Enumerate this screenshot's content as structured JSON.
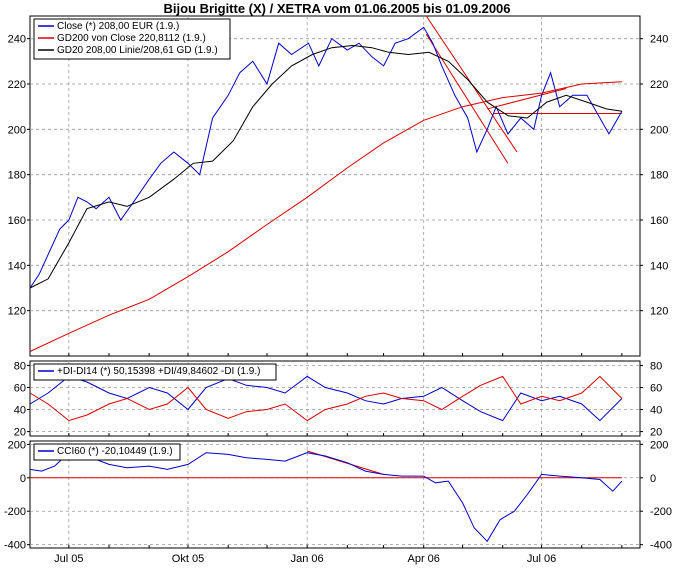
{
  "title": "Bijou Brigitte (X) / XETRA vom 01.06.2005 bis 01.09.2006",
  "x_ticks": [
    "Jul 05",
    "Okt 05",
    "Jan 06",
    "Apr 06",
    "Jul 06"
  ],
  "colors": {
    "close": "#0000cc",
    "gd200": "#dd0000",
    "gd20": "#000000",
    "di_plus": "#0000cc",
    "di_minus": "#dd0000",
    "cci": "#0000cc",
    "trend": "#dd0000",
    "grid": "#999999"
  },
  "chart_data": [
    {
      "type": "line",
      "title": "",
      "ylim": [
        100,
        250
      ],
      "y_ticks": [
        120,
        140,
        160,
        180,
        200,
        220,
        240
      ],
      "legend_placement": "top-left",
      "legend": [
        "Close (*) 208,00 EUR (1.9.)",
        "GD200 von Close 220,8112 (1.9.)",
        "GD20 208,00 Linie/208,61 GD (1.9.)"
      ],
      "series": [
        {
          "name": "Close (*) 208,00 EUR (1.9.)",
          "x": [
            "2005-06-01",
            "2005-06-08",
            "2005-06-16",
            "2005-06-24",
            "2005-07-01",
            "2005-07-08",
            "2005-07-15",
            "2005-07-22",
            "2005-08-01",
            "2005-08-10",
            "2005-08-20",
            "2005-09-01",
            "2005-09-10",
            "2005-09-20",
            "2005-10-01",
            "2005-10-10",
            "2005-10-20",
            "2005-11-01",
            "2005-11-10",
            "2005-11-20",
            "2005-12-01",
            "2005-12-10",
            "2005-12-20",
            "2006-01-02",
            "2006-01-10",
            "2006-01-20",
            "2006-02-01",
            "2006-02-10",
            "2006-02-20",
            "2006-03-01",
            "2006-03-10",
            "2006-03-20",
            "2006-04-01",
            "2006-04-08",
            "2006-04-15",
            "2006-04-25",
            "2006-05-05",
            "2006-05-12",
            "2006-05-20",
            "2006-05-27",
            "2006-06-05",
            "2006-06-15",
            "2006-06-25",
            "2006-07-01",
            "2006-07-08",
            "2006-07-15",
            "2006-07-25",
            "2006-08-05",
            "2006-08-15",
            "2006-08-22",
            "2006-09-01"
          ],
          "y": [
            130,
            136,
            146,
            156,
            160,
            170,
            168,
            165,
            170,
            160,
            168,
            178,
            185,
            190,
            185,
            180,
            205,
            215,
            225,
            230,
            220,
            238,
            233,
            238,
            228,
            240,
            235,
            238,
            232,
            228,
            238,
            240,
            245,
            238,
            228,
            215,
            205,
            190,
            200,
            210,
            198,
            205,
            200,
            215,
            225,
            210,
            215,
            215,
            205,
            198,
            208
          ]
        },
        {
          "name": "GD200 von Close 220,8112 (1.9.)",
          "x": [
            "2005-06-01",
            "2005-07-01",
            "2005-08-01",
            "2005-09-01",
            "2005-10-01",
            "2005-11-01",
            "2005-12-01",
            "2006-01-01",
            "2006-02-01",
            "2006-03-01",
            "2006-04-01",
            "2006-05-01",
            "2006-06-01",
            "2006-07-01",
            "2006-08-01",
            "2006-09-01"
          ],
          "y": [
            102,
            110,
            118,
            125,
            135,
            146,
            158,
            170,
            183,
            194,
            204,
            210,
            214,
            216,
            220,
            221
          ]
        },
        {
          "name": "GD20 208,00 Linie/208,61 GD (1.9.)",
          "x": [
            "2005-06-01",
            "2005-06-15",
            "2005-07-01",
            "2005-07-15",
            "2005-08-01",
            "2005-08-15",
            "2005-09-01",
            "2005-09-20",
            "2005-10-05",
            "2005-10-20",
            "2005-11-05",
            "2005-11-20",
            "2005-12-05",
            "2005-12-20",
            "2006-01-05",
            "2006-01-20",
            "2006-02-05",
            "2006-02-20",
            "2006-03-05",
            "2006-03-20",
            "2006-04-05",
            "2006-04-20",
            "2006-05-05",
            "2006-05-20",
            "2006-06-05",
            "2006-06-20",
            "2006-07-05",
            "2006-07-20",
            "2006-08-05",
            "2006-08-20",
            "2006-09-01"
          ],
          "y": [
            130,
            134,
            150,
            165,
            168,
            166,
            170,
            178,
            185,
            186,
            195,
            210,
            220,
            228,
            233,
            236,
            237,
            236,
            234,
            233,
            234,
            230,
            222,
            212,
            206,
            205,
            212,
            215,
            212,
            209,
            208
          ]
        }
      ],
      "trendlines": [
        {
          "x": [
            "2006-04-03",
            "2006-06-12"
          ],
          "y": [
            250,
            190
          ]
        },
        {
          "x": [
            "2006-04-03",
            "2006-06-05"
          ],
          "y": [
            242,
            185
          ]
        },
        {
          "x": [
            "2006-05-20",
            "2006-07-20"
          ],
          "y": [
            209,
            218
          ]
        },
        {
          "x": [
            "2006-05-25",
            "2006-09-01"
          ],
          "y": [
            207,
            207
          ]
        }
      ]
    },
    {
      "type": "line",
      "title": "",
      "ylim": [
        16,
        84
      ],
      "y_ticks": [
        20,
        40,
        60,
        80
      ],
      "legend": [
        "+DI-DI14 (*) 50,15398 +DI/49,84602 -DI (1.9.)"
      ],
      "series": [
        {
          "name": "+DI",
          "x": [
            "2005-06-01",
            "2005-06-15",
            "2005-07-01",
            "2005-07-15",
            "2005-08-01",
            "2005-08-15",
            "2005-09-01",
            "2005-09-15",
            "2005-10-01",
            "2005-10-15",
            "2005-11-01",
            "2005-11-15",
            "2005-12-01",
            "2005-12-15",
            "2006-01-01",
            "2006-01-15",
            "2006-02-01",
            "2006-02-15",
            "2006-03-01",
            "2006-03-15",
            "2006-04-01",
            "2006-04-15",
            "2006-05-01",
            "2006-05-15",
            "2006-06-01",
            "2006-06-15",
            "2006-07-01",
            "2006-07-15",
            "2006-08-01",
            "2006-08-15",
            "2006-09-01"
          ],
          "y": [
            45,
            55,
            70,
            65,
            55,
            50,
            60,
            55,
            40,
            60,
            68,
            62,
            60,
            55,
            70,
            60,
            55,
            48,
            45,
            50,
            52,
            60,
            48,
            38,
            30,
            55,
            48,
            52,
            45,
            30,
            50
          ]
        },
        {
          "name": "-DI",
          "x": [
            "2005-06-01",
            "2005-06-15",
            "2005-07-01",
            "2005-07-15",
            "2005-08-01",
            "2005-08-15",
            "2005-09-01",
            "2005-09-15",
            "2005-10-01",
            "2005-10-15",
            "2005-11-01",
            "2005-11-15",
            "2005-12-01",
            "2005-12-15",
            "2006-01-01",
            "2006-01-15",
            "2006-02-01",
            "2006-02-15",
            "2006-03-01",
            "2006-03-15",
            "2006-04-01",
            "2006-04-15",
            "2006-05-01",
            "2006-05-15",
            "2006-06-01",
            "2006-06-15",
            "2006-07-01",
            "2006-07-15",
            "2006-08-01",
            "2006-08-15",
            "2006-09-01"
          ],
          "y": [
            55,
            45,
            30,
            35,
            45,
            50,
            40,
            45,
            60,
            40,
            32,
            38,
            40,
            45,
            30,
            40,
            45,
            52,
            55,
            50,
            48,
            40,
            52,
            62,
            70,
            45,
            52,
            48,
            55,
            70,
            50
          ]
        }
      ]
    },
    {
      "type": "line",
      "title": "",
      "ylim": [
        -420,
        220
      ],
      "y_ticks": [
        -400,
        -200,
        0,
        200
      ],
      "legend": [
        "CCI60 (*) -20,10449 (1.9.)"
      ],
      "series": [
        {
          "name": "CCI60 (*) -20,10449 (1.9.)",
          "x": [
            "2005-06-01",
            "2005-06-10",
            "2005-06-20",
            "2005-07-01",
            "2005-07-15",
            "2005-08-01",
            "2005-08-15",
            "2005-09-01",
            "2005-09-15",
            "2005-10-01",
            "2005-10-15",
            "2005-11-01",
            "2005-11-15",
            "2005-12-01",
            "2005-12-15",
            "2006-01-01",
            "2006-01-15",
            "2006-02-01",
            "2006-02-15",
            "2006-03-01",
            "2006-03-15",
            "2006-04-01",
            "2006-04-10",
            "2006-04-20",
            "2006-05-01",
            "2006-05-10",
            "2006-05-20",
            "2006-05-30",
            "2006-06-10",
            "2006-06-20",
            "2006-07-01",
            "2006-07-15",
            "2006-08-01",
            "2006-08-15",
            "2006-08-25",
            "2006-09-01"
          ],
          "y": [
            50,
            40,
            70,
            150,
            130,
            80,
            60,
            70,
            50,
            80,
            150,
            140,
            120,
            110,
            100,
            150,
            130,
            90,
            40,
            20,
            10,
            10,
            -30,
            -20,
            -150,
            -300,
            -380,
            -250,
            -200,
            -100,
            20,
            10,
            0,
            -10,
            -80,
            -20
          ]
        }
      ],
      "trendlines": [
        {
          "x": [
            "2006-01-01",
            "2006-03-01"
          ],
          "y": [
            160,
            20
          ]
        },
        {
          "x": [
            "2005-06-01",
            "2006-09-01"
          ],
          "y": [
            0,
            0
          ]
        }
      ]
    }
  ]
}
